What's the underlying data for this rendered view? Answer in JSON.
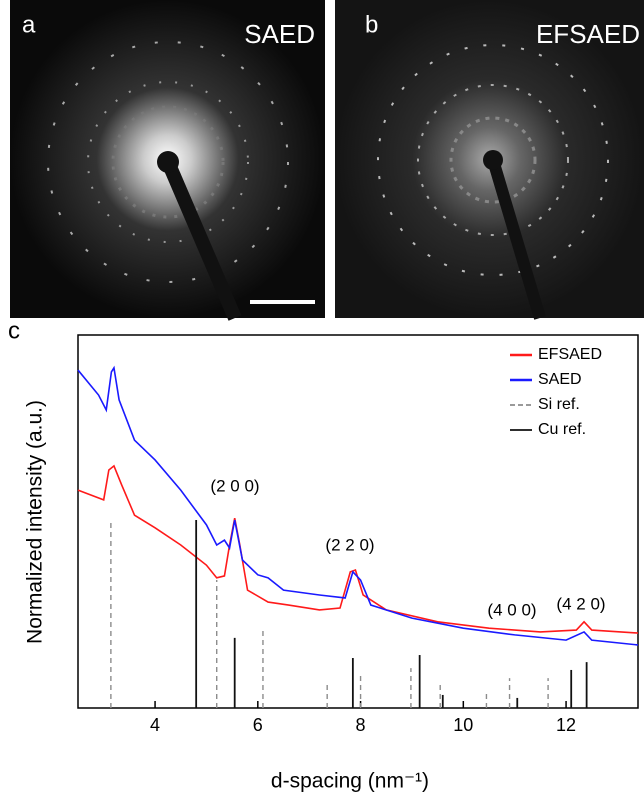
{
  "panels": [
    {
      "letter": "a",
      "label": "SAED"
    },
    {
      "letter": "b",
      "label": "EFSAED"
    }
  ],
  "chart_data": {
    "type": "line",
    "panel_label": "c",
    "x_label": "d-spacing (nm⁻¹)",
    "y_label": "Normalized intensity (a.u.)",
    "xlim": [
      2.5,
      13.4
    ],
    "xticks": [
      4,
      6,
      8,
      10,
      12
    ],
    "ylim": [
      0,
      1
    ],
    "legend": "upper right",
    "annotations": [
      "(2 0 0)",
      "(2 2 0)",
      "(4 0 0)",
      "(4 2 0)"
    ],
    "series": [
      {
        "name": "EFSAED",
        "color": "#ff1a1a",
        "style": "line",
        "x": [
          2.5,
          3.0,
          3.1,
          3.2,
          3.35,
          3.6,
          4.0,
          4.5,
          5.0,
          5.2,
          5.35,
          5.45,
          5.55,
          5.65,
          5.8,
          6.2,
          6.6,
          7.2,
          7.6,
          7.8,
          7.9,
          8.05,
          8.5,
          9.5,
          10.5,
          11.5,
          12.2,
          12.35,
          12.5,
          13.4
        ],
        "values": [
          0.584,
          0.558,
          0.638,
          0.649,
          0.598,
          0.517,
          0.483,
          0.437,
          0.383,
          0.349,
          0.354,
          0.437,
          0.509,
          0.437,
          0.316,
          0.284,
          0.276,
          0.263,
          0.268,
          0.365,
          0.37,
          0.303,
          0.263,
          0.231,
          0.214,
          0.204,
          0.209,
          0.231,
          0.209,
          0.201
        ]
      },
      {
        "name": "SAED",
        "color": "#1a1aff",
        "style": "line",
        "x": [
          2.5,
          2.9,
          3.05,
          3.15,
          3.2,
          3.3,
          3.6,
          4.0,
          4.5,
          5.0,
          5.2,
          5.35,
          5.45,
          5.55,
          5.7,
          6.0,
          6.2,
          6.5,
          7.2,
          7.7,
          7.85,
          8.0,
          8.2,
          9.0,
          10.0,
          11.0,
          12.0,
          12.35,
          12.5,
          13.4
        ],
        "values": [
          0.906,
          0.839,
          0.799,
          0.901,
          0.912,
          0.826,
          0.718,
          0.665,
          0.584,
          0.491,
          0.437,
          0.45,
          0.429,
          0.504,
          0.397,
          0.357,
          0.349,
          0.316,
          0.303,
          0.295,
          0.365,
          0.343,
          0.276,
          0.241,
          0.214,
          0.196,
          0.182,
          0.204,
          0.182,
          0.169
        ]
      },
      {
        "name": "Si ref.",
        "color": "#8c8c8c",
        "style": "dashed-stick",
        "x": [
          3.14,
          5.2,
          6.1,
          7.35,
          8.0,
          8.98,
          9.55,
          10.45,
          10.9,
          11.65
        ],
        "values": [
          0.504,
          0.343,
          0.214,
          0.067,
          0.086,
          0.107,
          0.067,
          0.048,
          0.08,
          0.08
        ]
      },
      {
        "name": "Cu ref.",
        "color": "#111111",
        "style": "stick",
        "x": [
          4.8,
          5.55,
          7.85,
          9.15,
          9.6,
          11.05,
          12.1,
          12.4
        ],
        "values": [
          0.504,
          0.188,
          0.134,
          0.142,
          0.035,
          0.027,
          0.102,
          0.123
        ]
      }
    ]
  }
}
